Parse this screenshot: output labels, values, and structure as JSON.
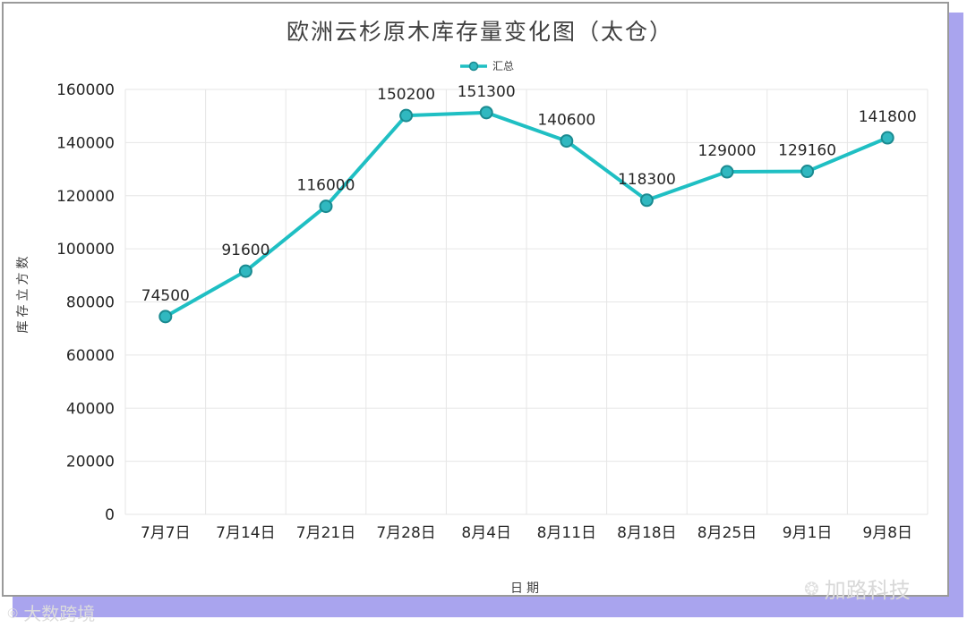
{
  "chart_data": {
    "type": "line",
    "title": "欧洲云杉原木库存量变化图（太仓）",
    "xlabel": "日期",
    "ylabel": "库存立方数",
    "categories": [
      "7月7日",
      "7月14日",
      "7月21日",
      "7月28日",
      "8月4日",
      "8月11日",
      "8月18日",
      "8月25日",
      "9月1日",
      "9月8日"
    ],
    "series": [
      {
        "name": "汇总",
        "values": [
          74500,
          91600,
          116000,
          150200,
          151300,
          140600,
          118300,
          129000,
          129160,
          141800
        ]
      }
    ],
    "ylim": [
      0,
      160000
    ],
    "yticks": [
      0,
      20000,
      40000,
      60000,
      80000,
      100000,
      120000,
      140000,
      160000
    ],
    "grid": true,
    "legend_position": "top-center",
    "colors": {
      "line": "#1fbfc3",
      "marker_fill": "#30b8c0",
      "marker_edge": "#1a8a90",
      "grid": "#e6e6e6"
    }
  },
  "watermarks": {
    "right": "加路科技",
    "right_icon": "wechat-icon",
    "left": "大数跨境",
    "left_icon": "brand-logo-icon"
  }
}
